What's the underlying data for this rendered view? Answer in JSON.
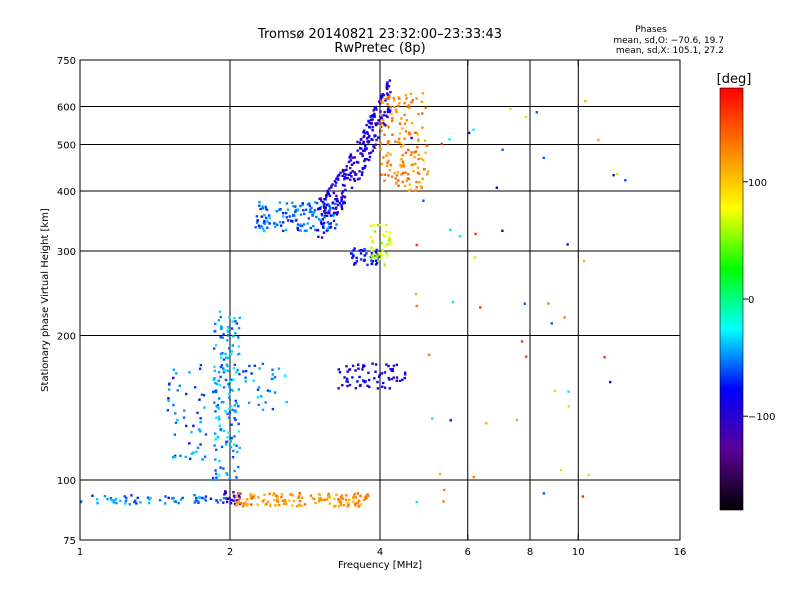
{
  "chart_data": {
    "type": "scatter",
    "title": "Tromsø 20140821 23:32:00–23:33:43",
    "subtitle": "RwPretec (8p)",
    "annotation": {
      "heading": "Phases",
      "line1": "mean, sd,O: −70.6, 19.7",
      "line2": "mean, sd,X: 105.1, 27.2"
    },
    "xlabel": "Frequency [MHz]",
    "ylabel": "Stationary phase Virtual Height [km]",
    "x_scale": "log2",
    "y_scale": "log",
    "xlim": [
      1,
      16
    ],
    "ylim": [
      75,
      750
    ],
    "x_ticks": [
      1,
      2,
      4,
      6,
      8,
      10,
      16
    ],
    "x_tick_labels": [
      "1",
      "2",
      "4",
      "6",
      "8",
      "10",
      "16"
    ],
    "x_gridlines": [
      2,
      4,
      6,
      8,
      10
    ],
    "y_ticks": [
      75,
      100,
      200,
      300,
      400,
      500,
      600,
      750
    ],
    "y_tick_labels": [
      "75",
      "100",
      "200",
      "300",
      "400",
      "500",
      "600",
      "750"
    ],
    "y_gridlines": [
      100,
      200,
      300,
      400,
      500,
      600
    ],
    "grid": true,
    "colorbar": {
      "label": "[deg]",
      "range": [
        -180,
        180
      ],
      "ticks": [
        100,
        0,
        -100
      ],
      "tick_labels": [
        "100",
        "0",
        "−100"
      ],
      "colors": [
        "#000000",
        "#5a0096",
        "#0000ff",
        "#00ffff",
        "#00ff00",
        "#ffff00",
        "#ff8000",
        "#ff0000"
      ]
    },
    "series": [
      {
        "cluster": "E-layer low band",
        "x_range": [
          1.0,
          1.95
        ],
        "y_range": [
          89,
          93
        ],
        "phase_deg": -55,
        "points": 60
      },
      {
        "cluster": "E-layer blue near 2 MHz",
        "x_range": [
          1.9,
          2.1
        ],
        "y_range": [
          89,
          95
        ],
        "phase_deg": -110,
        "points": 25
      },
      {
        "cluster": "E-layer orange band",
        "x_range": [
          2.05,
          3.8
        ],
        "y_range": [
          88,
          94
        ],
        "phase_deg": 120,
        "points": 140
      },
      {
        "cluster": "Es spread column",
        "x_range": [
          1.85,
          2.1
        ],
        "y_range": [
          100,
          225
        ],
        "phase_deg": -45,
        "points": 160
      },
      {
        "cluster": "Spread near 1.5-1.8 MHz",
        "x_range": [
          1.5,
          1.8
        ],
        "y_range": [
          110,
          175
        ],
        "phase_deg": -55,
        "points": 50
      },
      {
        "cluster": "Trace 2.1-2.6 MHz",
        "x_range": [
          2.1,
          2.6
        ],
        "y_range": [
          140,
          175
        ],
        "phase_deg": -50,
        "points": 30
      },
      {
        "cluster": "Echo cluster 3.3-4.5 MHz",
        "x_range": [
          3.3,
          4.5
        ],
        "y_range": [
          155,
          175
        ],
        "phase_deg": -90,
        "points": 70
      },
      {
        "cluster": "F O-trace lower",
        "x_range": [
          2.25,
          3.3
        ],
        "y_range": [
          330,
          380
        ],
        "phase_deg": -55,
        "points": 140
      },
      {
        "cluster": "F O-trace rising",
        "x_range": [
          3.0,
          4.2
        ],
        "y_range": [
          350,
          640
        ],
        "phase_deg": -95,
        "points": 260
      },
      {
        "cluster": "F X-trace",
        "x_range": [
          4.0,
          5.0
        ],
        "y_range": [
          400,
          640
        ],
        "phase_deg": 125,
        "points": 150
      },
      {
        "cluster": "Cluster at 300 km (blue)",
        "x_range": [
          3.5,
          4.0
        ],
        "y_range": [
          280,
          305
        ],
        "phase_deg": -80,
        "points": 40
      },
      {
        "cluster": "Cluster at 300 km (yellow-green)",
        "x_range": [
          3.8,
          4.2
        ],
        "y_range": [
          280,
          340
        ],
        "phase_deg": 65,
        "points": 40
      },
      {
        "cluster": "Sparse high-frequency echoes",
        "x_range": [
          4.5,
          12.5
        ],
        "y_range": [
          80,
          620
        ],
        "phase_deg": "mixed",
        "points": 55
      }
    ]
  }
}
